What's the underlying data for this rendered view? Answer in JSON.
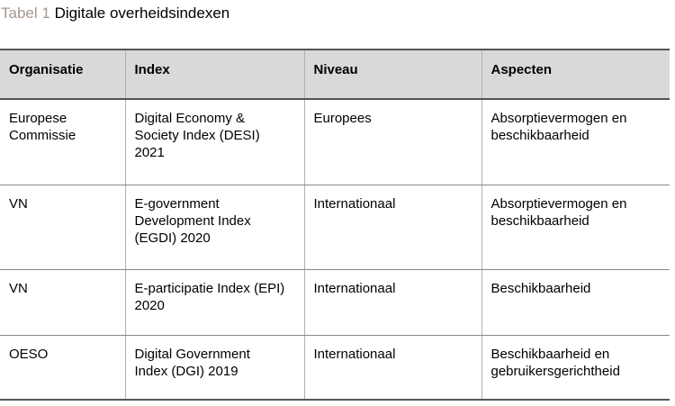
{
  "caption": {
    "label": "Tabel 1",
    "title": "Digitale overheidsindexen"
  },
  "table": {
    "headers": [
      "Organisatie",
      "Index",
      "Niveau",
      "Aspecten"
    ],
    "rows": [
      [
        "Europese\nCommissie",
        "Digital Economy &\nSociety Index (DESI)\n2021",
        "Europees",
        "Absorptievermogen en\nbeschikbaarheid"
      ],
      [
        "VN",
        "E-government\nDevelopment Index\n(EGDI) 2020",
        "Internationaal",
        "Absorptievermogen en\nbeschikbaarheid"
      ],
      [
        "VN",
        "E-participatie Index (EPI)\n2020",
        "Internationaal",
        "Beschikbaarheid"
      ],
      [
        "OESO",
        "Digital Government\nIndex (DGI) 2019",
        "Internationaal",
        "Beschikbaarheid en\ngebruikersgerichtheid"
      ]
    ]
  }
}
